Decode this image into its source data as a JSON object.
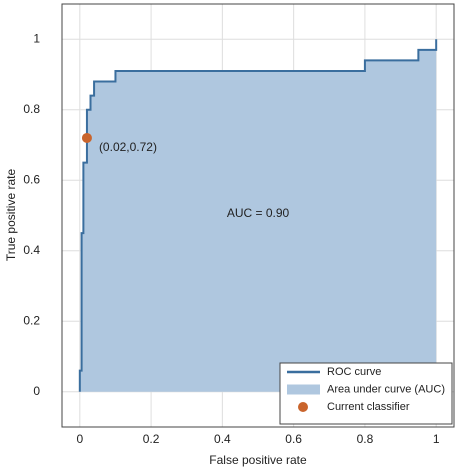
{
  "chart_data": {
    "type": "roc",
    "x_label": "False positive rate",
    "y_label": "True positive rate",
    "xlim": [
      -0.05,
      1.05
    ],
    "ylim": [
      -0.1,
      1.1
    ],
    "xticks": [
      0,
      0.2,
      0.4,
      0.6,
      0.8,
      1
    ],
    "yticks": [
      0,
      0.2,
      0.4,
      0.6,
      0.8,
      1
    ],
    "grid": true,
    "legend": "lower right",
    "annotations": [
      "(0.02,0.72)",
      "AUC = 0.90"
    ],
    "series": [
      {
        "name": "ROC curve",
        "type": "line",
        "color": "#3a6e9e",
        "x": [
          0,
          0,
          0.005,
          0.005,
          0.01,
          0.01,
          0.02,
          0.02,
          0.03,
          0.03,
          0.04,
          0.04,
          0.1,
          0.1,
          0.8,
          0.8,
          0.86,
          0.86,
          0.95,
          0.95,
          1,
          1
        ],
        "values": [
          0,
          0.06,
          0.06,
          0.45,
          0.45,
          0.65,
          0.65,
          0.8,
          0.8,
          0.84,
          0.84,
          0.88,
          0.88,
          0.91,
          0.91,
          0.94,
          0.94,
          0.94,
          0.94,
          0.97,
          0.97,
          1
        ]
      },
      {
        "name": "Area under curve (AUC)",
        "type": "area",
        "color": "#afc7df",
        "x": [
          0,
          0,
          0.005,
          0.005,
          0.01,
          0.01,
          0.02,
          0.02,
          0.03,
          0.03,
          0.04,
          0.04,
          0.1,
          0.1,
          0.8,
          0.8,
          0.86,
          0.86,
          0.95,
          0.95,
          1,
          1
        ],
        "values": [
          0,
          0.06,
          0.06,
          0.45,
          0.45,
          0.65,
          0.65,
          0.8,
          0.8,
          0.84,
          0.84,
          0.88,
          0.88,
          0.91,
          0.91,
          0.94,
          0.94,
          0.94,
          0.94,
          0.97,
          0.97,
          1
        ]
      },
      {
        "name": "Current classifier",
        "type": "scatter",
        "color": "#c9642c",
        "x": [
          0.02
        ],
        "values": [
          0.72
        ]
      }
    ]
  }
}
